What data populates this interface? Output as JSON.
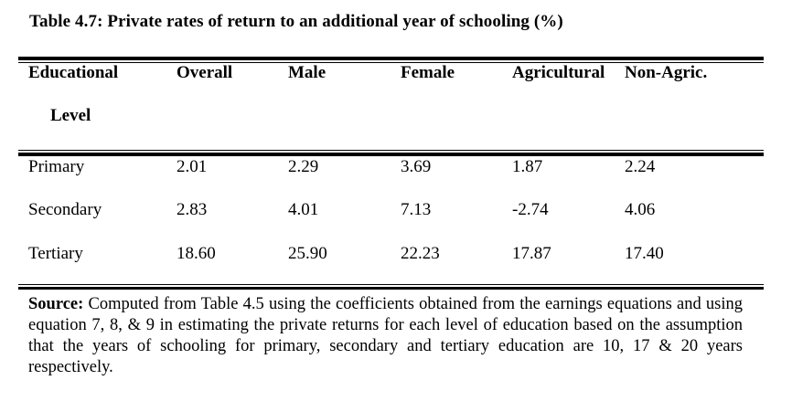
{
  "caption": "Table 4.7: Private rates of return to an additional year of schooling (%)",
  "table": {
    "headers": [
      "Educational",
      "Overall",
      "Male",
      "Female",
      "Agricultural",
      "Non-Agric."
    ],
    "header_line2": "Level",
    "rows": [
      [
        "Primary",
        "2.01",
        "2.29",
        "3.69",
        "1.87",
        "2.24"
      ],
      [
        "Secondary",
        "2.83",
        "4.01",
        "7.13",
        "-2.74",
        "4.06"
      ],
      [
        "Tertiary",
        "18.60",
        "25.90",
        "22.23",
        "17.87",
        "17.40"
      ]
    ]
  },
  "source": {
    "label": "Source:",
    "text": " Computed from Table 4.5 using the coefficients obtained from the earnings equations and using equation 7, 8, & 9 in estimating the private returns for each level of education based on the assumption that the years of schooling for primary, secondary and tertiary education are 10, 17 & 20 years respectively."
  }
}
